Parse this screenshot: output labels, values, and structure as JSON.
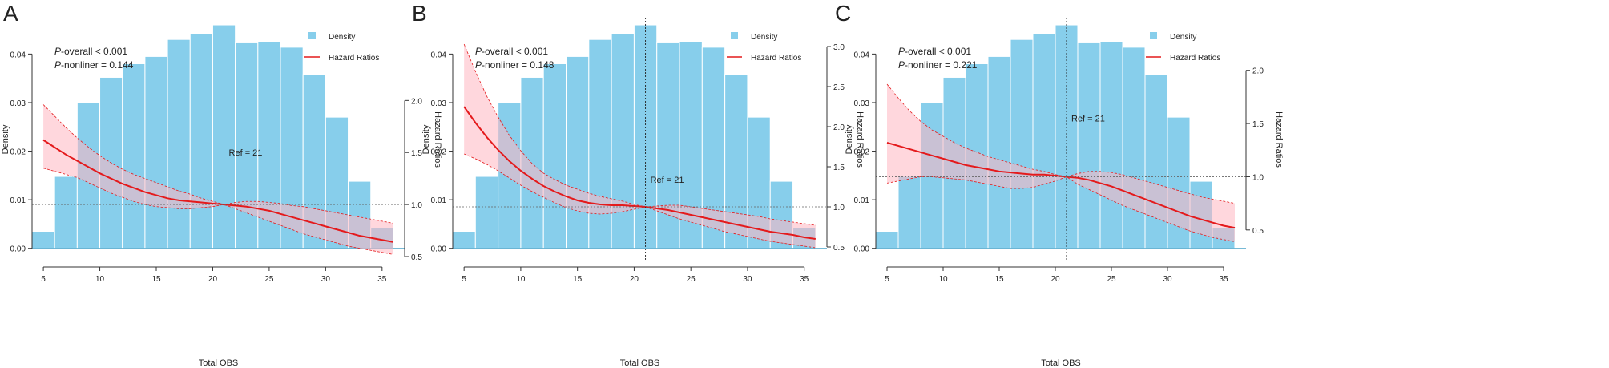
{
  "colors": {
    "bar": "#87CEEB",
    "bar_edge": "#ffffff",
    "hr_line": "#e41a1c",
    "ci_fill": "#ffb6c1",
    "axis": "#333333"
  },
  "chart_data": [
    {
      "type": "bar",
      "panel_label": "A",
      "xlabel": "Total OBS",
      "ylabel": "Density",
      "y2label": "Hazard Ratios",
      "xlim": [
        4,
        37
      ],
      "ylim": [
        -0.0017,
        0.0465
      ],
      "y2lim": [
        0.5,
        2.75
      ],
      "xticks": [
        5,
        10,
        15,
        20,
        25,
        30,
        35
      ],
      "yticks": [
        0.0,
        0.01,
        0.02,
        0.03,
        0.04
      ],
      "y2ticks": [
        0.5,
        1.0,
        1.5,
        2.0
      ],
      "stats": {
        "prefix": "P",
        "overall": "-overall < 0.001",
        "nonlinear": "-nonliner = 0.144"
      },
      "legend": {
        "position": "top-right",
        "density_label": "Density",
        "hr_label": "Hazard Ratios"
      },
      "ref_label": "Ref = 21",
      "ref_x": 21,
      "ref_label_y": 1.47,
      "hr_ref": 1.0,
      "histogram": {
        "edges": [
          4,
          6,
          8,
          10,
          12,
          14,
          16,
          18,
          20,
          22,
          24,
          26,
          28,
          30,
          32,
          34,
          36
        ],
        "densities": [
          0.0035,
          0.0148,
          0.03,
          0.0352,
          0.038,
          0.0395,
          0.043,
          0.0442,
          0.046,
          0.0423,
          0.0425,
          0.0414,
          0.0358,
          0.027,
          0.0138,
          0.0042
        ]
      },
      "hr": {
        "x": [
          5,
          6,
          7,
          8,
          9,
          10,
          11,
          12,
          13,
          14,
          15,
          16,
          17,
          18,
          19,
          20,
          21,
          22,
          23,
          24,
          25,
          26,
          27,
          28,
          29,
          30,
          31,
          32,
          33,
          34,
          35,
          36
        ],
        "y": [
          1.62,
          1.55,
          1.48,
          1.42,
          1.36,
          1.3,
          1.25,
          1.2,
          1.16,
          1.12,
          1.09,
          1.06,
          1.04,
          1.03,
          1.02,
          1.01,
          1.0,
          0.99,
          0.98,
          0.96,
          0.94,
          0.91,
          0.88,
          0.85,
          0.82,
          0.79,
          0.76,
          0.73,
          0.7,
          0.68,
          0.66,
          0.64
        ],
        "lo": [
          1.35,
          1.32,
          1.29,
          1.26,
          1.21,
          1.16,
          1.11,
          1.07,
          1.03,
          1.0,
          0.98,
          0.97,
          0.96,
          0.96,
          0.97,
          0.98,
          1.0,
          0.96,
          0.92,
          0.88,
          0.84,
          0.8,
          0.76,
          0.72,
          0.69,
          0.66,
          0.63,
          0.6,
          0.58,
          0.56,
          0.54,
          0.52
        ],
        "hi": [
          1.96,
          1.85,
          1.74,
          1.64,
          1.55,
          1.47,
          1.4,
          1.34,
          1.29,
          1.25,
          1.21,
          1.17,
          1.13,
          1.1,
          1.06,
          1.03,
          1.0,
          1.02,
          1.03,
          1.03,
          1.02,
          1.01,
          0.99,
          0.98,
          0.96,
          0.94,
          0.92,
          0.9,
          0.88,
          0.86,
          0.84,
          0.82
        ]
      }
    },
    {
      "type": "bar",
      "panel_label": "B",
      "xlabel": "Total OBS",
      "ylabel": "Density",
      "y2label": "Hazard Ratios",
      "xlim": [
        4,
        37
      ],
      "ylim": [
        -0.0017,
        0.0465
      ],
      "y2lim": [
        0.38,
        3.3
      ],
      "xticks": [
        5,
        10,
        15,
        20,
        25,
        30,
        35
      ],
      "yticks": [
        0.0,
        0.01,
        0.02,
        0.03,
        0.04
      ],
      "y2ticks": [
        0.5,
        1.0,
        1.5,
        2.0,
        2.5,
        3.0
      ],
      "stats": {
        "prefix": "P",
        "overall": "-overall < 0.001",
        "nonlinear": "-nonliner = 0.148"
      },
      "legend": {
        "position": "top-right",
        "density_label": "Density",
        "hr_label": "Hazard Ratios"
      },
      "ref_label": "Ref = 21",
      "ref_x": 21,
      "ref_label_y": 1.3,
      "hr_ref": 1.0,
      "histogram": {
        "edges": [
          4,
          6,
          8,
          10,
          12,
          14,
          16,
          18,
          20,
          22,
          24,
          26,
          28,
          30,
          32,
          34,
          36
        ],
        "densities": [
          0.0035,
          0.0148,
          0.03,
          0.0352,
          0.038,
          0.0395,
          0.043,
          0.0442,
          0.046,
          0.0423,
          0.0425,
          0.0414,
          0.0358,
          0.027,
          0.0138,
          0.0042
        ]
      },
      "hr": {
        "x": [
          5,
          6,
          7,
          8,
          9,
          10,
          11,
          12,
          13,
          14,
          15,
          16,
          17,
          18,
          19,
          20,
          21,
          22,
          23,
          24,
          25,
          26,
          27,
          28,
          29,
          30,
          31,
          32,
          33,
          34,
          35,
          36
        ],
        "y": [
          2.25,
          2.05,
          1.87,
          1.71,
          1.57,
          1.45,
          1.35,
          1.26,
          1.19,
          1.13,
          1.08,
          1.05,
          1.03,
          1.02,
          1.02,
          1.01,
          1.0,
          0.98,
          0.96,
          0.93,
          0.9,
          0.87,
          0.84,
          0.81,
          0.78,
          0.75,
          0.72,
          0.69,
          0.67,
          0.65,
          0.62,
          0.6
        ],
        "lo": [
          1.66,
          1.6,
          1.53,
          1.45,
          1.36,
          1.27,
          1.19,
          1.12,
          1.05,
          0.99,
          0.95,
          0.92,
          0.91,
          0.92,
          0.94,
          0.97,
          1.0,
          0.95,
          0.9,
          0.85,
          0.81,
          0.77,
          0.73,
          0.69,
          0.66,
          0.63,
          0.6,
          0.57,
          0.55,
          0.53,
          0.51,
          0.49
        ],
        "hi": [
          3.03,
          2.69,
          2.38,
          2.12,
          1.89,
          1.7,
          1.54,
          1.42,
          1.34,
          1.27,
          1.22,
          1.17,
          1.13,
          1.1,
          1.07,
          1.03,
          1.0,
          1.01,
          1.02,
          1.02,
          1.0,
          0.98,
          0.96,
          0.94,
          0.92,
          0.9,
          0.88,
          0.85,
          0.83,
          0.81,
          0.79,
          0.77
        ]
      }
    },
    {
      "type": "bar",
      "panel_label": "C",
      "xlabel": "Total OBS",
      "ylabel": "Density",
      "y2label": "Hazard Ratios",
      "xlim": [
        4,
        37
      ],
      "ylim": [
        -0.0017,
        0.0465
      ],
      "y2lim": [
        0.25,
        2.45
      ],
      "xticks": [
        5,
        10,
        15,
        20,
        25,
        30,
        35
      ],
      "yticks": [
        0.0,
        0.01,
        0.02,
        0.03,
        0.04
      ],
      "y2ticks": [
        0.5,
        1.0,
        1.5,
        2.0
      ],
      "stats": {
        "prefix": "P",
        "overall": "-overall < 0.001",
        "nonlinear": "-nonliner = 0.221"
      },
      "legend": {
        "position": "top-right",
        "density_label": "Density",
        "hr_label": "Hazard Ratios"
      },
      "ref_label": "Ref = 21",
      "ref_x": 21,
      "ref_label_y": 1.52,
      "hr_ref": 1.0,
      "histogram": {
        "edges": [
          4,
          6,
          8,
          10,
          12,
          14,
          16,
          18,
          20,
          22,
          24,
          26,
          28,
          30,
          32,
          34,
          36
        ],
        "densities": [
          0.0035,
          0.0148,
          0.03,
          0.0352,
          0.038,
          0.0395,
          0.043,
          0.0442,
          0.046,
          0.0423,
          0.0425,
          0.0414,
          0.0358,
          0.027,
          0.0138,
          0.0042
        ]
      },
      "hr": {
        "x": [
          5,
          6,
          7,
          8,
          9,
          10,
          11,
          12,
          13,
          14,
          15,
          16,
          17,
          18,
          19,
          20,
          21,
          22,
          23,
          24,
          25,
          26,
          27,
          28,
          29,
          30,
          31,
          32,
          33,
          34,
          35,
          36
        ],
        "y": [
          1.32,
          1.29,
          1.26,
          1.23,
          1.2,
          1.17,
          1.14,
          1.11,
          1.09,
          1.07,
          1.05,
          1.04,
          1.03,
          1.02,
          1.02,
          1.01,
          1.0,
          0.99,
          0.97,
          0.94,
          0.91,
          0.87,
          0.83,
          0.79,
          0.75,
          0.71,
          0.67,
          0.63,
          0.6,
          0.57,
          0.54,
          0.52
        ],
        "lo": [
          0.94,
          0.96,
          0.98,
          1.0,
          1.0,
          0.99,
          0.98,
          0.97,
          0.95,
          0.93,
          0.91,
          0.89,
          0.89,
          0.9,
          0.93,
          0.96,
          1.0,
          0.93,
          0.88,
          0.83,
          0.78,
          0.73,
          0.69,
          0.65,
          0.61,
          0.57,
          0.53,
          0.49,
          0.46,
          0.43,
          0.41,
          0.39
        ],
        "hi": [
          1.87,
          1.74,
          1.62,
          1.52,
          1.44,
          1.38,
          1.32,
          1.27,
          1.23,
          1.19,
          1.16,
          1.13,
          1.1,
          1.07,
          1.05,
          1.02,
          1.0,
          1.03,
          1.05,
          1.05,
          1.04,
          1.02,
          0.99,
          0.96,
          0.93,
          0.9,
          0.87,
          0.84,
          0.81,
          0.79,
          0.77,
          0.75
        ]
      }
    }
  ]
}
